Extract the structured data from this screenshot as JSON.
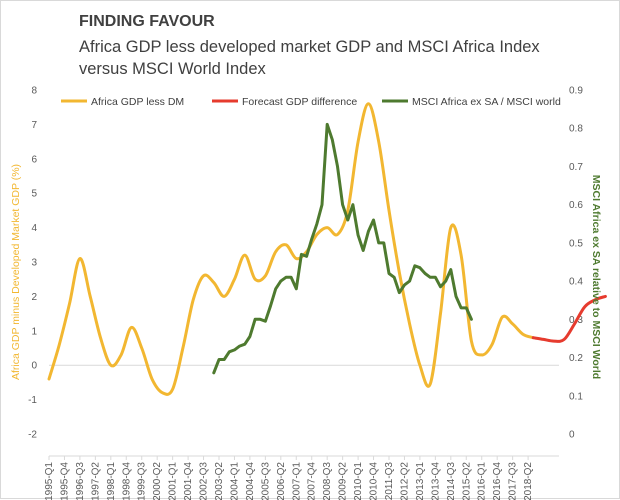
{
  "chart_data": {
    "type": "line",
    "title": "FINDING FAVOUR",
    "subtitle_line1": "Africa GDP less developed market GDP and MSCI Africa Index",
    "subtitle_line2": "versus MSCI World Index",
    "ylabel_left": "Africa GDP minus Developed Market GDP (%)",
    "ylabel_right": "MSCI Africa ex SA relative to MSCI World",
    "ylim_left": [
      -2,
      8
    ],
    "ylim_right": [
      0,
      0.9
    ],
    "yticks_left": [
      "-2",
      "-1",
      "0",
      "1",
      "2",
      "3",
      "4",
      "5",
      "6",
      "7",
      "8"
    ],
    "yticks_right": [
      "0",
      "0.1",
      "0.2",
      "0.3",
      "0.4",
      "0.5",
      "0.6",
      "0.7",
      "0.8",
      "0.9"
    ],
    "x_start": 1995,
    "x_tick_labels": [
      "1995-Q1",
      "1995-Q4",
      "1996-Q3",
      "1997-Q2",
      "1998-Q1",
      "1998-Q4",
      "1999-Q3",
      "2000-Q2",
      "2001-Q1",
      "2001-Q4",
      "2002-Q3",
      "2003-Q2",
      "2004-Q1",
      "2004-Q4",
      "2005-Q3",
      "2006-Q2",
      "2007-Q1",
      "2007-Q4",
      "2008-Q3",
      "2009-Q2",
      "2010-Q1",
      "2010-Q4",
      "2011-Q3",
      "2012-Q2",
      "2013-Q1",
      "2013-Q4",
      "2014-Q3",
      "2015-Q2",
      "2016-Q1",
      "2016-Q4",
      "2017-Q3",
      "2018-Q2"
    ],
    "series": [
      {
        "name": "Africa GDP less DM",
        "color": "#f2b731",
        "axis": "left",
        "points": [
          [
            1995.0,
            -0.4
          ],
          [
            1995.5,
            0.6
          ],
          [
            1996.0,
            1.8
          ],
          [
            1996.5,
            3.1
          ],
          [
            1997.0,
            2.0
          ],
          [
            1997.5,
            0.8
          ],
          [
            1998.0,
            0.0
          ],
          [
            1998.5,
            0.3
          ],
          [
            1999.0,
            1.1
          ],
          [
            1999.5,
            0.5
          ],
          [
            2000.0,
            -0.4
          ],
          [
            2000.5,
            -0.8
          ],
          [
            2001.0,
            -0.7
          ],
          [
            2001.5,
            0.5
          ],
          [
            2002.0,
            1.9
          ],
          [
            2002.5,
            2.6
          ],
          [
            2003.0,
            2.4
          ],
          [
            2003.5,
            2.0
          ],
          [
            2004.0,
            2.5
          ],
          [
            2004.5,
            3.2
          ],
          [
            2005.0,
            2.5
          ],
          [
            2005.5,
            2.6
          ],
          [
            2006.0,
            3.3
          ],
          [
            2006.5,
            3.5
          ],
          [
            2007.0,
            3.1
          ],
          [
            2007.5,
            3.3
          ],
          [
            2008.0,
            3.8
          ],
          [
            2008.5,
            4.0
          ],
          [
            2009.0,
            3.8
          ],
          [
            2009.5,
            4.5
          ],
          [
            2010.0,
            6.5
          ],
          [
            2010.5,
            7.6
          ],
          [
            2011.0,
            6.5
          ],
          [
            2011.5,
            4.5
          ],
          [
            2012.0,
            2.7
          ],
          [
            2012.5,
            1.2
          ],
          [
            2013.0,
            0.0
          ],
          [
            2013.5,
            -0.55
          ],
          [
            2014.0,
            1.5
          ],
          [
            2014.5,
            4.0
          ],
          [
            2015.0,
            3.2
          ],
          [
            2015.5,
            0.7
          ],
          [
            2016.0,
            0.3
          ],
          [
            2016.5,
            0.6
          ],
          [
            2017.0,
            1.4
          ],
          [
            2017.5,
            1.2
          ],
          [
            2018.0,
            0.9
          ],
          [
            2018.5,
            0.8
          ]
        ]
      },
      {
        "name": "Forecast GDP difference",
        "color": "#e63b2e",
        "axis": "left",
        "points": [
          [
            2018.5,
            0.8
          ],
          [
            2019.0,
            0.75
          ],
          [
            2019.5,
            0.7
          ],
          [
            2020.0,
            0.75
          ],
          [
            2020.5,
            1.2
          ],
          [
            2021.0,
            1.7
          ],
          [
            2021.5,
            1.9
          ],
          [
            2022.0,
            2.0
          ]
        ]
      },
      {
        "name": "MSCI Africa ex SA / MSCI world",
        "color": "#4e7a2f",
        "axis": "right",
        "points": [
          [
            2003.0,
            0.16
          ],
          [
            2003.25,
            0.195
          ],
          [
            2003.5,
            0.195
          ],
          [
            2003.75,
            0.215
          ],
          [
            2004.0,
            0.22
          ],
          [
            2004.25,
            0.23
          ],
          [
            2004.5,
            0.235
          ],
          [
            2004.75,
            0.255
          ],
          [
            2005.0,
            0.3
          ],
          [
            2005.25,
            0.3
          ],
          [
            2005.5,
            0.295
          ],
          [
            2005.75,
            0.335
          ],
          [
            2006.0,
            0.38
          ],
          [
            2006.25,
            0.4
          ],
          [
            2006.5,
            0.41
          ],
          [
            2006.75,
            0.41
          ],
          [
            2007.0,
            0.38
          ],
          [
            2007.25,
            0.47
          ],
          [
            2007.5,
            0.465
          ],
          [
            2007.75,
            0.51
          ],
          [
            2008.0,
            0.55
          ],
          [
            2008.25,
            0.6
          ],
          [
            2008.5,
            0.81
          ],
          [
            2008.75,
            0.77
          ],
          [
            2009.0,
            0.7
          ],
          [
            2009.25,
            0.6
          ],
          [
            2009.5,
            0.56
          ],
          [
            2009.75,
            0.6
          ],
          [
            2010.0,
            0.52
          ],
          [
            2010.25,
            0.48
          ],
          [
            2010.5,
            0.53
          ],
          [
            2010.75,
            0.56
          ],
          [
            2011.0,
            0.5
          ],
          [
            2011.25,
            0.5
          ],
          [
            2011.5,
            0.42
          ],
          [
            2011.75,
            0.41
          ],
          [
            2012.0,
            0.37
          ],
          [
            2012.25,
            0.39
          ],
          [
            2012.5,
            0.4
          ],
          [
            2012.75,
            0.44
          ],
          [
            2013.0,
            0.435
          ],
          [
            2013.25,
            0.42
          ],
          [
            2013.5,
            0.41
          ],
          [
            2013.75,
            0.41
          ],
          [
            2014.0,
            0.385
          ],
          [
            2014.25,
            0.4
          ],
          [
            2014.5,
            0.43
          ],
          [
            2014.75,
            0.36
          ],
          [
            2015.0,
            0.33
          ],
          [
            2015.25,
            0.33
          ],
          [
            2015.5,
            0.3
          ]
        ]
      }
    ],
    "legend": [
      "Africa GDP less DM",
      "Forecast GDP difference",
      "MSCI Africa ex SA / MSCI world"
    ],
    "left_axis_title_color": "#f2b731",
    "right_axis_title_color": "#4e7a2f"
  }
}
